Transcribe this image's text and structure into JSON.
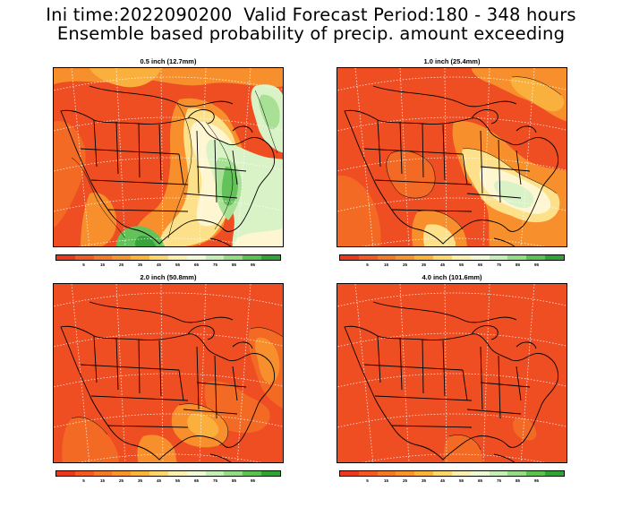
{
  "header": {
    "line1": "Ini time:2022090200  Valid Forecast Period:180 - 348 hours",
    "line2": "Ensemble based probability of precip. amount exceeding"
  },
  "panels": [
    {
      "title": "0.5 inch (12.7mm)"
    },
    {
      "title": "1.0 inch (25.4mm)"
    },
    {
      "title": "2.0 inch (50.8mm)"
    },
    {
      "title": "4.0 inch (101.6mm)"
    }
  ],
  "colorbar": {
    "colors": [
      "#e8391d",
      "#f25a22",
      "#f47a26",
      "#f7952c",
      "#fab43a",
      "#fcd86a",
      "#fbefb0",
      "#eefad6",
      "#c6efb6",
      "#96dc87",
      "#5bc252",
      "#2fa335"
    ],
    "tick_labels": [
      "5",
      "15",
      "25",
      "35",
      "45",
      "55",
      "65",
      "75",
      "85",
      "95"
    ]
  },
  "palette": {
    "red": "#ef4d22",
    "orange_red": "#f36a24",
    "orange": "#f7902c",
    "light_orange": "#fab03c",
    "yellow": "#fde18a",
    "cream": "#fdf6d0",
    "pale_green": "#d9f2c6",
    "light_green": "#a8e096",
    "green": "#63c35a",
    "dark_green": "#37a33c"
  },
  "icons": {
    "map": "north-america-map"
  }
}
